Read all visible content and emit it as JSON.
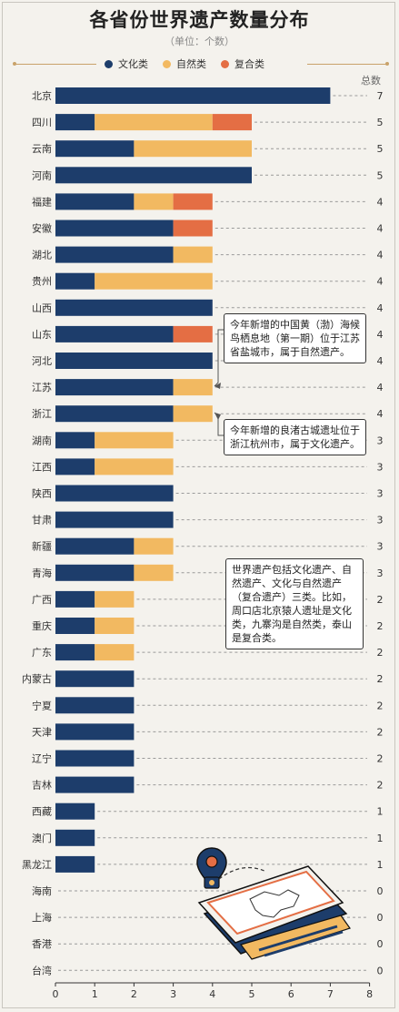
{
  "title": "各省份世界遗产数量分布",
  "subtitle": "（单位：个数）",
  "total_label": "总数",
  "colors": {
    "cultural": "#1d3d6b",
    "natural": "#f2b961",
    "mixed": "#e46e44",
    "total_dash": "#9a9a9a",
    "connector": "#555555"
  },
  "annotations": [
    {
      "id": "note-yellow-sea",
      "text": "今年新增的中国黄（渤）海候鸟栖息地（第一期）位于江苏省盐城市，属于自然遗产。"
    },
    {
      "id": "note-liangzhu",
      "text": "今年新增的良渚古城遗址位于浙江杭州市，属于文化遗产。"
    },
    {
      "id": "note-definition",
      "text": "世界遗产包括文化遗产、自然遗产、文化与自然遗产（复合遗产）三类。比如，周口店北京猿人遗址是文化类，九寨沟是自然类，泰山是复合类。"
    }
  ],
  "chart_data": {
    "type": "bar",
    "orientation": "horizontal",
    "stacked": true,
    "title": "各省份世界遗产数量分布",
    "subtitle": "（单位：个数）",
    "xlim": [
      0,
      8
    ],
    "x_ticks": [
      "0",
      "1",
      "2",
      "3",
      "4",
      "5",
      "6",
      "7",
      "8"
    ],
    "legend_position": "top-center",
    "categories": [
      "北京",
      "四川",
      "云南",
      "河南",
      "福建",
      "安徽",
      "湖北",
      "贵州",
      "山西",
      "山东",
      "河北",
      "江苏",
      "浙江",
      "湖南",
      "江西",
      "陕西",
      "甘肃",
      "新疆",
      "青海",
      "广西",
      "重庆",
      "广东",
      "内蒙古",
      "宁夏",
      "天津",
      "辽宁",
      "吉林",
      "西藏",
      "澳门",
      "黑龙江",
      "海南",
      "上海",
      "香港",
      "台湾"
    ],
    "series": [
      {
        "name": "文化类",
        "values": [
          7,
          1,
          2,
          5,
          2,
          3,
          3,
          1,
          4,
          3,
          4,
          3,
          3,
          1,
          1,
          3,
          3,
          2,
          2,
          1,
          1,
          1,
          2,
          2,
          2,
          2,
          2,
          1,
          1,
          1,
          0,
          0,
          0,
          0
        ]
      },
      {
        "name": "自然类",
        "values": [
          0,
          3,
          3,
          0,
          1,
          0,
          1,
          3,
          0,
          0,
          0,
          1,
          1,
          2,
          2,
          0,
          0,
          1,
          1,
          1,
          1,
          1,
          0,
          0,
          0,
          0,
          0,
          0,
          0,
          0,
          0,
          0,
          0,
          0
        ]
      },
      {
        "name": "复合类",
        "values": [
          0,
          1,
          0,
          0,
          1,
          1,
          0,
          0,
          0,
          1,
          0,
          0,
          0,
          0,
          0,
          0,
          0,
          0,
          0,
          0,
          0,
          0,
          0,
          0,
          0,
          0,
          0,
          0,
          0,
          0,
          0,
          0,
          0,
          0
        ]
      }
    ],
    "totals": [
      7,
      5,
      5,
      5,
      4,
      4,
      4,
      4,
      4,
      4,
      4,
      4,
      4,
      3,
      3,
      3,
      3,
      3,
      3,
      2,
      2,
      2,
      2,
      2,
      2,
      2,
      2,
      1,
      1,
      1,
      0,
      0,
      0,
      0
    ]
  }
}
